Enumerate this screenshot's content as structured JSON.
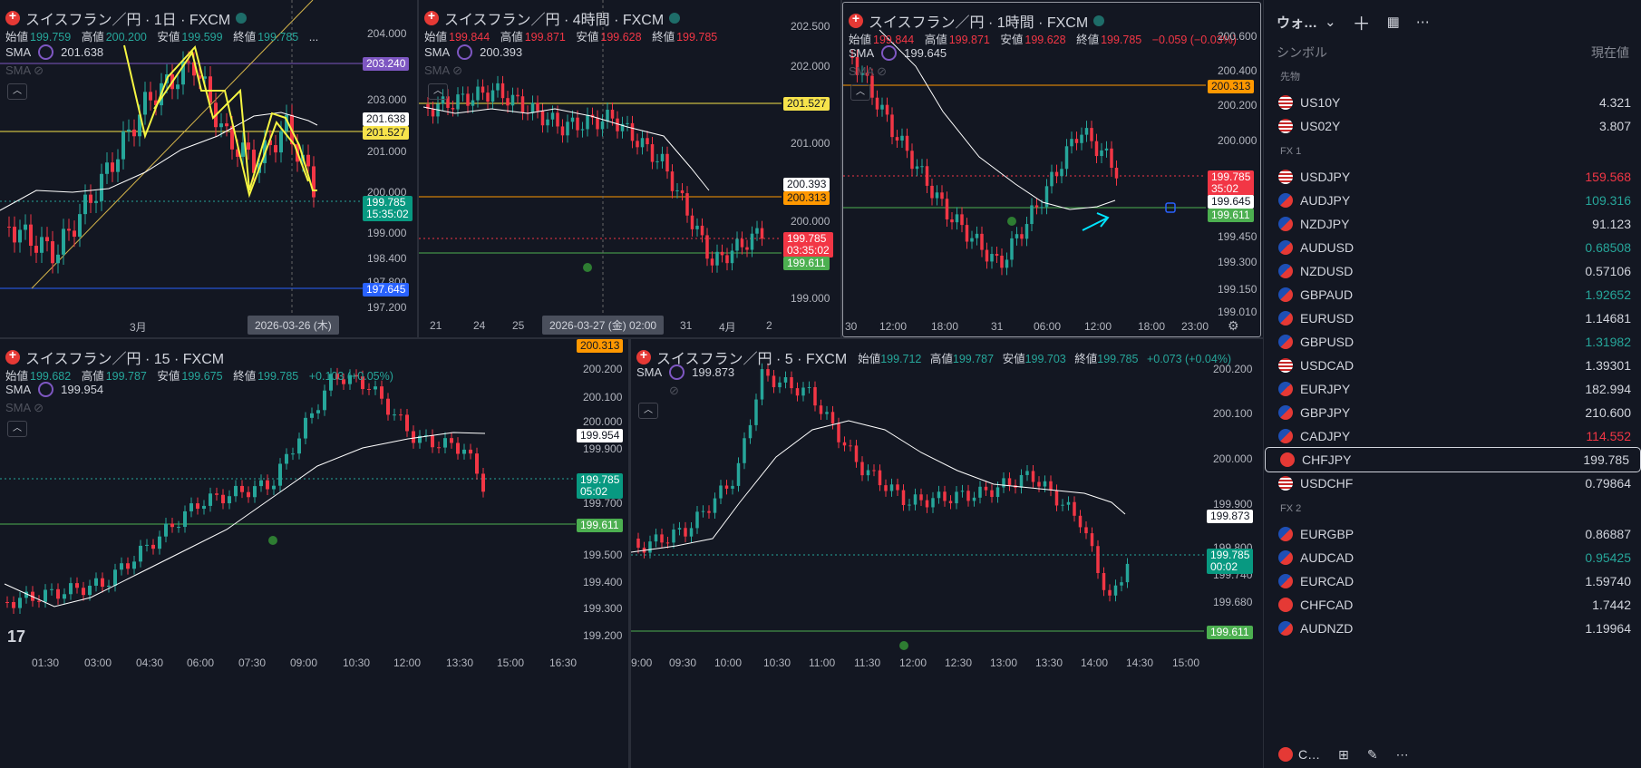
{
  "panels": {
    "p1": {
      "title": "スイスフラン／円 · 1日 · FXCM",
      "ohlc": [
        {
          "k": "始値",
          "v": "199.759"
        },
        {
          "k": "高値",
          "v": "200.200"
        },
        {
          "k": "安値",
          "v": "199.599"
        },
        {
          "k": "終値",
          "v": "199.785"
        },
        {
          "k": "",
          "v": "..."
        }
      ],
      "sma_label": "SMA",
      "sma_value": "201.638",
      "sma2_label": "SMA",
      "axis": [
        "204.000",
        "203.000",
        "201.000",
        "200.000",
        "199.000",
        "198.400",
        "197.800",
        "197.200"
      ],
      "tags": {
        "purple": "203.240",
        "white": "201.638",
        "yellow": "201.527",
        "green": "199.785",
        "green_sub": "15:35:02",
        "blue": "197.645"
      },
      "time": {
        "m": "3月",
        "cross": "2026-03-26 (木)"
      }
    },
    "p2": {
      "title": "スイスフラン／円 · 4時間 · FXCM",
      "ohlc": [
        {
          "k": "始値",
          "v": "199.844"
        },
        {
          "k": "高値",
          "v": "199.871"
        },
        {
          "k": "安値",
          "v": "199.628"
        },
        {
          "k": "終値",
          "v": "199.785"
        }
      ],
      "sma_label": "SMA",
      "sma_value": "200.393",
      "sma2_label": "SMA",
      "axis": [
        "202.500",
        "202.000",
        "201.000",
        "200.000",
        "199.000"
      ],
      "tags": {
        "yellow": "201.527",
        "white": "200.393",
        "orange": "200.313",
        "red": "199.785",
        "red_sub": "03:35:02",
        "green": "199.611"
      },
      "time": {
        "t1": "21",
        "t2": "24",
        "t3": "25",
        "cross": "2026-03-27 (金)   02:00",
        "t4": "31",
        "t5": "4月",
        "t6": "2"
      }
    },
    "p3": {
      "title": "スイスフラン／円 · 1時間 · FXCM",
      "ohlc": [
        {
          "k": "始値",
          "v": "199.844"
        },
        {
          "k": "高値",
          "v": "199.871"
        },
        {
          "k": "安値",
          "v": "199.628"
        },
        {
          "k": "終値",
          "v": "199.785"
        },
        {
          "k": "",
          "v": "−0.059 (−0.03%)"
        }
      ],
      "sma_label": "SMA",
      "sma_value": "199.645",
      "sma2_label": "SMA",
      "axis": [
        "200.600",
        "200.400",
        "200.200",
        "200.000",
        "199.450",
        "199.300",
        "199.150",
        "199.010"
      ],
      "tags": {
        "orange": "200.313",
        "red": "199.785",
        "red_sub": "35:02",
        "white": "199.645",
        "green": "199.611"
      },
      "time": {
        "t1": "30",
        "t2": "12:00",
        "t3": "18:00",
        "t4": "31",
        "t5": "06:00",
        "t6": "12:00",
        "t7": "18:00",
        "t8": "23:00"
      }
    },
    "p4": {
      "title": "スイスフラン／円 · 15 · FXCM",
      "ohlc": [
        {
          "k": "始値",
          "v": "199.682"
        },
        {
          "k": "高値",
          "v": "199.787"
        },
        {
          "k": "安値",
          "v": "199.675"
        },
        {
          "k": "終値",
          "v": "199.785"
        },
        {
          "k": "",
          "v": "+0.103 (+0.05%)"
        }
      ],
      "sma_label": "SMA",
      "sma_value": "199.954",
      "sma2_label": "SMA",
      "axis": [
        "200.200",
        "200.100",
        "200.000",
        "199.900",
        "199.700",
        "199.500",
        "199.400",
        "199.300",
        "199.200"
      ],
      "tags": {
        "orange": "200.313",
        "white": "199.954",
        "green": "199.785",
        "green_sub": "05:02",
        "green2": "199.611"
      },
      "time": {
        "t1": "01:30",
        "t2": "03:00",
        "t3": "04:30",
        "t4": "06:00",
        "t5": "07:30",
        "t6": "09:00",
        "t7": "10:30",
        "t8": "12:00",
        "t9": "13:30",
        "t10": "15:00",
        "t11": "16:30"
      }
    },
    "p5": {
      "title": "スイスフラン／円 · 5 · FXCM",
      "ohlc": [
        {
          "k": "始値",
          "v": "199.712"
        },
        {
          "k": "高値",
          "v": "199.787"
        },
        {
          "k": "安値",
          "v": "199.703"
        },
        {
          "k": "終値",
          "v": "199.785"
        },
        {
          "k": "",
          "v": "+0.073 (+0.04%)"
        }
      ],
      "sma_label": "SMA",
      "sma_value": "199.873",
      "sma2_label": "",
      "axis": [
        "200.200",
        "200.100",
        "200.000",
        "199.900",
        "199.800",
        "199.740",
        "199.680"
      ],
      "tags": {
        "white": "199.873",
        "green": "199.785",
        "green_sub": "00:02",
        "green2": "199.611"
      },
      "time": {
        "t1": "9:00",
        "t2": "09:30",
        "t3": "10:00",
        "t4": "10:30",
        "t5": "11:00",
        "t6": "11:30",
        "t7": "12:00",
        "t8": "12:30",
        "t9": "13:00",
        "t10": "13:30",
        "t11": "14:00",
        "t12": "14:30",
        "t13": "15:00"
      }
    }
  },
  "watchlist": {
    "title": "ウォ…",
    "col_symbol": "シンボル",
    "col_price": "現在値",
    "groups": [
      {
        "name": "先物",
        "rows": [
          {
            "sym": "US10Y",
            "val": "4.321",
            "cls": ""
          },
          {
            "sym": "US02Y",
            "val": "3.807",
            "cls": ""
          }
        ]
      },
      {
        "name": "FX 1",
        "rows": [
          {
            "sym": "USDJPY",
            "val": "159.568",
            "cls": "red"
          },
          {
            "sym": "AUDJPY",
            "val": "109.316",
            "cls": "grn"
          },
          {
            "sym": "NZDJPY",
            "val": "91.123",
            "cls": ""
          },
          {
            "sym": "AUDUSD",
            "val": "0.68508",
            "cls": "grn"
          },
          {
            "sym": "NZDUSD",
            "val": "0.57106",
            "cls": ""
          },
          {
            "sym": "GBPAUD",
            "val": "1.92652",
            "cls": "grn"
          },
          {
            "sym": "EURUSD",
            "val": "1.14681",
            "cls": ""
          },
          {
            "sym": "GBPUSD",
            "val": "1.31982",
            "cls": "grn"
          },
          {
            "sym": "USDCAD",
            "val": "1.39301",
            "cls": ""
          },
          {
            "sym": "EURJPY",
            "val": "182.994",
            "cls": ""
          },
          {
            "sym": "GBPJPY",
            "val": "210.600",
            "cls": ""
          },
          {
            "sym": "CADJPY",
            "val": "114.552",
            "cls": "red"
          },
          {
            "sym": "CHFJPY",
            "val": "199.785",
            "cls": ""
          },
          {
            "sym": "USDCHF",
            "val": "0.79864",
            "cls": ""
          }
        ]
      },
      {
        "name": "FX 2",
        "rows": [
          {
            "sym": "EURGBP",
            "val": "0.86887",
            "cls": ""
          },
          {
            "sym": "AUDCAD",
            "val": "0.95425",
            "cls": "grn"
          },
          {
            "sym": "EURCAD",
            "val": "1.59740",
            "cls": ""
          },
          {
            "sym": "CHFCAD",
            "val": "1.7442",
            "cls": ""
          },
          {
            "sym": "AUDNZD",
            "val": "1.19964",
            "cls": ""
          }
        ]
      }
    ],
    "bottom_label": "C…"
  }
}
